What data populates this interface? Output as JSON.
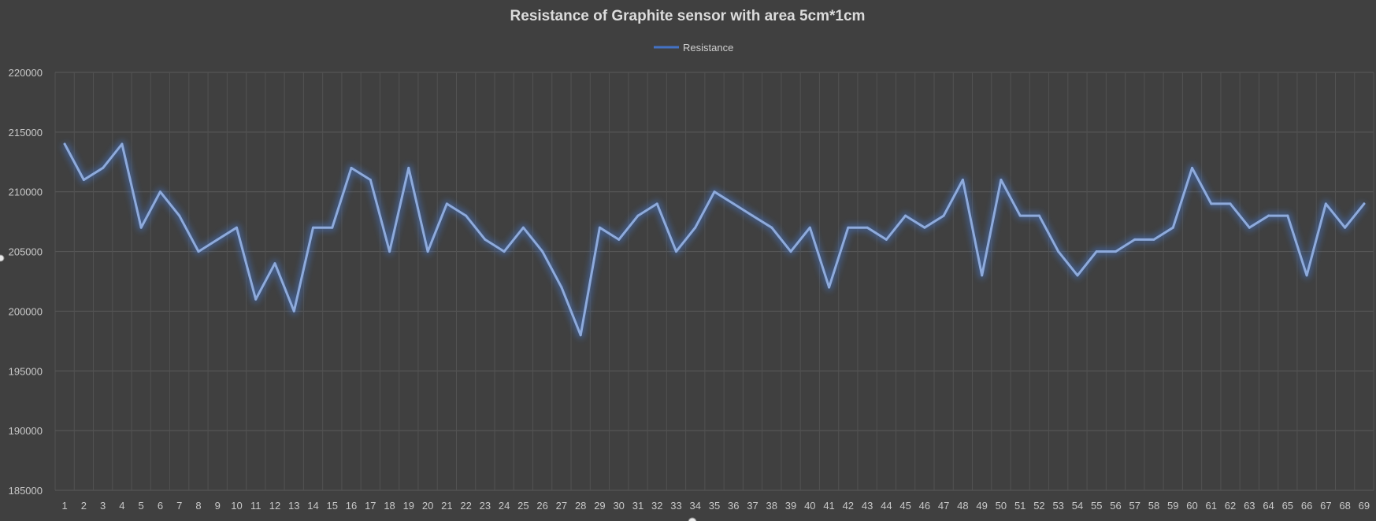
{
  "colors": {
    "background": "#404040",
    "series_line": "#8eaadb",
    "series_glow": "#4472c4",
    "legend_line": "#4472c4",
    "grid": "#5a5a5a",
    "text": "#d0d0d0"
  },
  "chart_data": {
    "type": "line",
    "title": "Resistance of Graphite sensor with area 5cm*1cm",
    "xlabel": "",
    "ylabel": "",
    "legend_position": "top-center",
    "grid": true,
    "ylim": [
      185000,
      220000
    ],
    "yticks": [
      185000,
      190000,
      195000,
      200000,
      205000,
      210000,
      215000,
      220000
    ],
    "categories": [
      "1",
      "2",
      "3",
      "4",
      "5",
      "6",
      "7",
      "8",
      "9",
      "10",
      "11",
      "12",
      "13",
      "14",
      "15",
      "16",
      "17",
      "18",
      "19",
      "20",
      "21",
      "22",
      "23",
      "24",
      "25",
      "26",
      "27",
      "28",
      "29",
      "30",
      "31",
      "32",
      "33",
      "34",
      "35",
      "36",
      "37",
      "38",
      "39",
      "40",
      "41",
      "42",
      "43",
      "44",
      "45",
      "46",
      "47",
      "48",
      "49",
      "50",
      "51",
      "52",
      "53",
      "54",
      "55",
      "56",
      "57",
      "58",
      "59",
      "60",
      "61",
      "62",
      "63",
      "64",
      "65",
      "66",
      "67",
      "68",
      "69"
    ],
    "series": [
      {
        "name": "Resistance",
        "values": [
          214000,
          211000,
          212000,
          214000,
          207000,
          210000,
          208000,
          205000,
          206000,
          207000,
          201000,
          204000,
          200000,
          207000,
          207000,
          212000,
          211000,
          205000,
          212000,
          205000,
          209000,
          208000,
          206000,
          205000,
          207000,
          205000,
          202000,
          198000,
          207000,
          206000,
          208000,
          209000,
          205000,
          207000,
          210000,
          209000,
          208000,
          207000,
          205000,
          207000,
          202000,
          207000,
          207000,
          206000,
          208000,
          207000,
          208000,
          211000,
          203000,
          211000,
          208000,
          208000,
          205000,
          203000,
          205000,
          205000,
          206000,
          206000,
          207000,
          212000,
          209000,
          209000,
          207000,
          208000,
          208000,
          203000,
          209000,
          207000,
          209000
        ]
      }
    ]
  }
}
